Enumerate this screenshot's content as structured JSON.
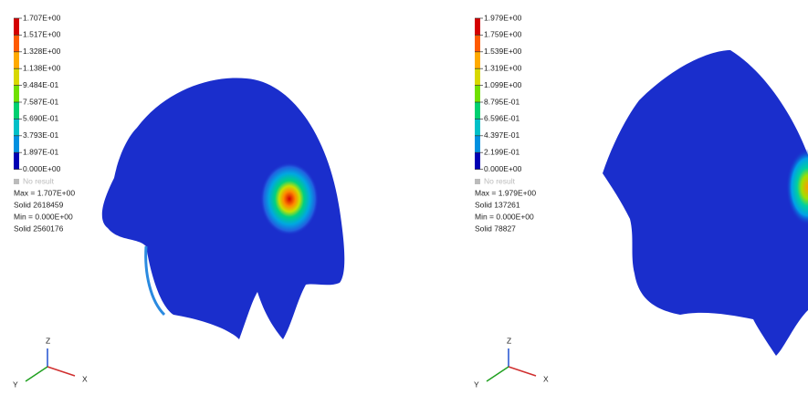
{
  "panels": [
    {
      "legend": [
        "1.707E+00",
        "1.517E+00",
        "1.328E+00",
        "1.138E+00",
        "9.484E-01",
        "7.587E-01",
        "5.690E-01",
        "3.793E-01",
        "1.897E-01",
        "0.000E+00"
      ],
      "no_result": "No result",
      "info": [
        "Max = 1.707E+00",
        "Solid 2618459",
        "Min = 0.000E+00",
        "Solid 2560176"
      ],
      "axes": {
        "z": "Z",
        "y": "Y",
        "x": "X"
      }
    },
    {
      "legend": [
        "1.979E+00",
        "1.759E+00",
        "1.539E+00",
        "1.319E+00",
        "1.099E+00",
        "8.795E-01",
        "6.596E-01",
        "4.397E-01",
        "2.199E-01",
        "0.000E+00"
      ],
      "no_result": "No result",
      "info": [
        "Max = 1.979E+00",
        "Solid 137261",
        "Min = 0.000E+00",
        "Solid 78827"
      ],
      "axes": {
        "z": "Z",
        "y": "Y",
        "x": "X"
      }
    }
  ]
}
